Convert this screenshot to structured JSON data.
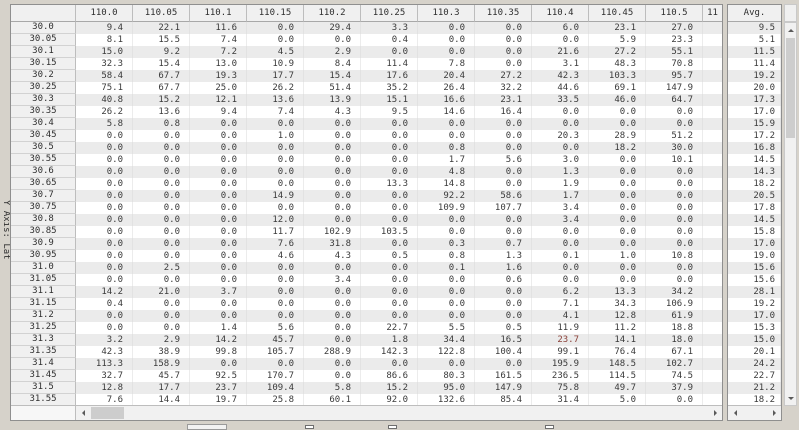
{
  "y_axis_label": "Y Axis: Lat",
  "grid": {
    "corner_label": "",
    "columns": [
      "110.0",
      "110.05",
      "110.1",
      "110.15",
      "110.2",
      "110.25",
      "110.3",
      "110.35",
      "110.4",
      "110.45",
      "110.5"
    ],
    "partial_column_label": "11",
    "rows": [
      {
        "label": "30.0",
        "values": [
          "9.4",
          "22.1",
          "11.6",
          "0.0",
          "29.4",
          "3.3",
          "0.0",
          "0.0",
          "6.0",
          "23.1",
          "27.0"
        ],
        "avg": "9.5"
      },
      {
        "label": "30.05",
        "values": [
          "8.1",
          "15.5",
          "7.4",
          "0.0",
          "0.0",
          "0.4",
          "0.0",
          "0.0",
          "0.0",
          "5.9",
          "23.3"
        ],
        "avg": "5.1"
      },
      {
        "label": "30.1",
        "values": [
          "15.0",
          "9.2",
          "7.2",
          "4.5",
          "2.9",
          "0.0",
          "0.0",
          "0.0",
          "21.6",
          "27.2",
          "55.1"
        ],
        "avg": "11.5"
      },
      {
        "label": "30.15",
        "values": [
          "32.3",
          "15.4",
          "13.0",
          "10.9",
          "8.4",
          "11.4",
          "7.8",
          "0.0",
          "3.1",
          "48.3",
          "70.8"
        ],
        "avg": "11.4"
      },
      {
        "label": "30.2",
        "values": [
          "58.4",
          "67.7",
          "19.3",
          "17.7",
          "15.4",
          "17.6",
          "20.4",
          "27.2",
          "42.3",
          "103.3",
          "95.7"
        ],
        "avg": "19.2"
      },
      {
        "label": "30.25",
        "values": [
          "75.1",
          "67.7",
          "25.0",
          "26.2",
          "51.4",
          "35.2",
          "26.4",
          "32.2",
          "44.6",
          "69.1",
          "147.9"
        ],
        "avg": "20.0"
      },
      {
        "label": "30.3",
        "values": [
          "40.8",
          "15.2",
          "12.1",
          "13.6",
          "13.9",
          "15.1",
          "16.6",
          "23.1",
          "33.5",
          "46.0",
          "64.7"
        ],
        "avg": "17.3"
      },
      {
        "label": "30.35",
        "values": [
          "26.2",
          "13.6",
          "9.4",
          "7.4",
          "4.3",
          "9.5",
          "14.6",
          "16.4",
          "0.0",
          "0.0",
          "0.0"
        ],
        "avg": "17.0"
      },
      {
        "label": "30.4",
        "values": [
          "5.8",
          "0.8",
          "0.0",
          "0.0",
          "0.0",
          "0.0",
          "0.0",
          "0.0",
          "0.0",
          "0.0",
          "0.0"
        ],
        "avg": "15.9"
      },
      {
        "label": "30.45",
        "values": [
          "0.0",
          "0.0",
          "0.0",
          "1.0",
          "0.0",
          "0.0",
          "0.0",
          "0.0",
          "20.3",
          "28.9",
          "51.2"
        ],
        "avg": "17.2"
      },
      {
        "label": "30.5",
        "values": [
          "0.0",
          "0.0",
          "0.0",
          "0.0",
          "0.0",
          "0.0",
          "0.8",
          "0.0",
          "0.0",
          "18.2",
          "30.0"
        ],
        "avg": "16.8"
      },
      {
        "label": "30.55",
        "values": [
          "0.0",
          "0.0",
          "0.0",
          "0.0",
          "0.0",
          "0.0",
          "1.7",
          "5.6",
          "3.0",
          "0.0",
          "10.1"
        ],
        "avg": "14.5"
      },
      {
        "label": "30.6",
        "values": [
          "0.0",
          "0.0",
          "0.0",
          "0.0",
          "0.0",
          "0.0",
          "4.8",
          "0.0",
          "1.3",
          "0.0",
          "0.0"
        ],
        "avg": "14.3"
      },
      {
        "label": "30.65",
        "values": [
          "0.0",
          "0.0",
          "0.0",
          "0.0",
          "0.0",
          "13.3",
          "14.8",
          "0.0",
          "1.9",
          "0.0",
          "0.0"
        ],
        "avg": "18.2"
      },
      {
        "label": "30.7",
        "values": [
          "0.0",
          "0.0",
          "0.0",
          "14.9",
          "0.0",
          "0.0",
          "92.2",
          "58.6",
          "1.7",
          "0.0",
          "0.0"
        ],
        "avg": "20.5"
      },
      {
        "label": "30.75",
        "values": [
          "0.0",
          "0.0",
          "0.0",
          "0.0",
          "0.0",
          "0.0",
          "109.9",
          "107.7",
          "3.4",
          "0.0",
          "0.0"
        ],
        "avg": "17.8"
      },
      {
        "label": "30.8",
        "values": [
          "0.0",
          "0.0",
          "0.0",
          "12.0",
          "0.0",
          "0.0",
          "0.0",
          "0.0",
          "3.4",
          "0.0",
          "0.0"
        ],
        "avg": "14.5"
      },
      {
        "label": "30.85",
        "values": [
          "0.0",
          "0.0",
          "0.0",
          "11.7",
          "102.9",
          "103.5",
          "0.0",
          "0.0",
          "0.0",
          "0.0",
          "0.0"
        ],
        "avg": "15.8"
      },
      {
        "label": "30.9",
        "values": [
          "0.0",
          "0.0",
          "0.0",
          "7.6",
          "31.8",
          "0.0",
          "0.3",
          "0.7",
          "0.0",
          "0.0",
          "0.0"
        ],
        "avg": "17.0"
      },
      {
        "label": "30.95",
        "values": [
          "0.0",
          "0.0",
          "0.0",
          "4.6",
          "4.3",
          "0.5",
          "0.8",
          "1.3",
          "0.1",
          "1.0",
          "10.8"
        ],
        "avg": "19.0"
      },
      {
        "label": "31.0",
        "values": [
          "0.0",
          "2.5",
          "0.0",
          "0.0",
          "0.0",
          "0.0",
          "0.1",
          "1.6",
          "0.0",
          "0.0",
          "0.0"
        ],
        "avg": "15.6"
      },
      {
        "label": "31.05",
        "values": [
          "0.0",
          "0.0",
          "0.0",
          "0.0",
          "3.4",
          "0.0",
          "0.0",
          "0.6",
          "0.0",
          "0.0",
          "0.0"
        ],
        "avg": "15.6"
      },
      {
        "label": "31.1",
        "values": [
          "14.2",
          "21.0",
          "3.7",
          "0.0",
          "0.0",
          "0.0",
          "0.0",
          "0.0",
          "6.2",
          "13.3",
          "34.2"
        ],
        "avg": "28.1"
      },
      {
        "label": "31.15",
        "values": [
          "0.4",
          "0.0",
          "0.0",
          "0.0",
          "0.0",
          "0.0",
          "0.0",
          "0.0",
          "7.1",
          "34.3",
          "106.9"
        ],
        "avg": "19.2"
      },
      {
        "label": "31.2",
        "values": [
          "0.0",
          "0.0",
          "0.0",
          "0.0",
          "0.0",
          "0.0",
          "0.0",
          "0.0",
          "4.1",
          "12.8",
          "61.9"
        ],
        "avg": "17.0"
      },
      {
        "label": "31.25",
        "values": [
          "0.0",
          "0.0",
          "1.4",
          "5.6",
          "0.0",
          "22.7",
          "5.5",
          "0.5",
          "11.9",
          "11.2",
          "18.8"
        ],
        "avg": "15.3"
      },
      {
        "label": "31.3",
        "values": [
          "3.2",
          "2.9",
          "14.2",
          "45.7",
          "0.0",
          "1.8",
          "34.4",
          "16.5",
          "23.7",
          "14.1",
          "18.0"
        ],
        "avg": "15.0"
      },
      {
        "label": "31.35",
        "values": [
          "42.3",
          "38.9",
          "99.8",
          "105.7",
          "288.9",
          "142.3",
          "122.8",
          "100.4",
          "99.1",
          "76.4",
          "67.1"
        ],
        "avg": "20.1"
      },
      {
        "label": "31.4",
        "values": [
          "113.3",
          "158.9",
          "0.0",
          "0.0",
          "0.0",
          "0.0",
          "0.0",
          "0.0",
          "195.9",
          "148.5",
          "102.7"
        ],
        "avg": "24.2"
      },
      {
        "label": "31.45",
        "values": [
          "32.7",
          "45.7",
          "92.5",
          "170.7",
          "0.0",
          "86.6",
          "80.3",
          "161.5",
          "236.5",
          "114.5",
          "74.5"
        ],
        "avg": "22.7"
      },
      {
        "label": "31.5",
        "values": [
          "12.8",
          "17.7",
          "23.7",
          "109.4",
          "5.8",
          "15.2",
          "95.0",
          "147.9",
          "75.8",
          "49.7",
          "37.9"
        ],
        "avg": "21.2"
      },
      {
        "label": "31.55",
        "values": [
          "7.6",
          "14.4",
          "19.7",
          "25.8",
          "60.1",
          "92.0",
          "132.6",
          "85.4",
          "31.4",
          "5.0",
          "0.0"
        ],
        "avg": "18.2"
      }
    ],
    "highlight": {
      "row": "31.3",
      "col_index": 8,
      "color": "#8a4038"
    }
  },
  "avg_pane": {
    "header": "Avg."
  },
  "colors": {
    "page_bg": "#d6d2ca",
    "stripe": "#ebebeb",
    "header_bg": "#f0f0f0",
    "scroll_thumb": "#cdcdcd",
    "text": "#3a3a3a"
  },
  "icons": {
    "hscroll_left": "left-arrow",
    "hscroll_right": "right-arrow",
    "vscroll_up": "up-arrow",
    "vscroll_down": "down-arrow"
  }
}
